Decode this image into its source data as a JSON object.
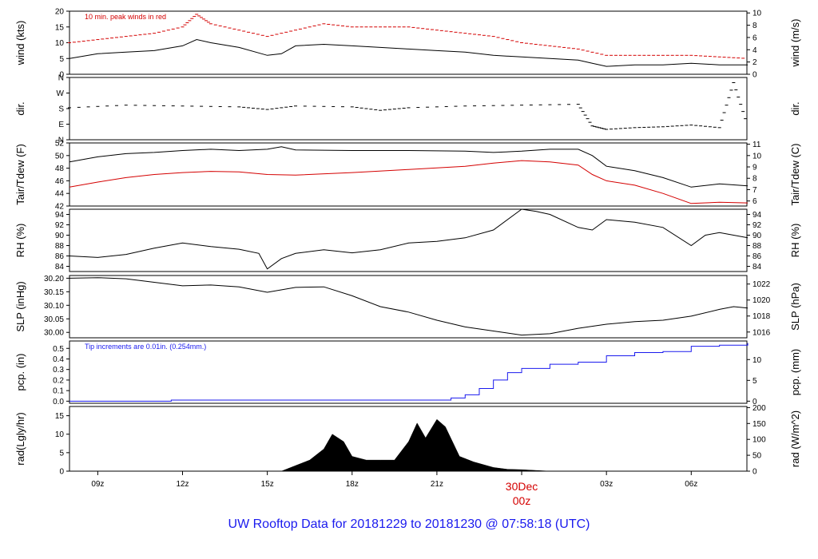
{
  "footer": {
    "title": "UW Rooftop Data for 20181229  to  20181230 @ 07:58:18  (UTC)"
  },
  "chart_data": {
    "type": "line",
    "x_axis": {
      "ticks": [
        "09z",
        "12z",
        "15z",
        "18z",
        "21z",
        "30Dec",
        "03z",
        "06z"
      ],
      "tick_hours": [
        9,
        12,
        15,
        18,
        21,
        24,
        27,
        30
      ],
      "day_label_top": "30Dec",
      "day_label_bottom": "00z",
      "xlim_hours": [
        8.0,
        31.97
      ],
      "day_color": "#d40000"
    },
    "panels": [
      {
        "id": "wind",
        "ylabel_left": "wind (kts)",
        "ylabel_right": "wind (m/s)",
        "ylim": [
          0,
          20
        ],
        "left_ticks": [
          0,
          5,
          10,
          15,
          20
        ],
        "right_ticks": [
          "0",
          "2",
          "4",
          "6",
          "8",
          "10"
        ],
        "right_tick_values": [
          0,
          3.89,
          7.78,
          11.66,
          15.55,
          19.44
        ],
        "note": "10 min. peak winds in red",
        "note_color": "#d40000",
        "series": [
          {
            "style": "line",
            "color": "#000000",
            "x": [
              8,
              9,
              10,
              11,
              12,
              12.5,
              13,
              14,
              15,
              15.5,
              16,
              17,
              18,
              19,
              20,
              21,
              22,
              23,
              24,
              25,
              26,
              26.5,
              27,
              28,
              29,
              30,
              31,
              32
            ],
            "y": [
              5,
              6.5,
              7,
              7.5,
              9,
              11,
              10,
              8.5,
              6,
              6.5,
              9,
              9.5,
              9,
              8.5,
              8,
              7.5,
              7,
              6,
              5.5,
              5,
              4.5,
              3.5,
              2.5,
              3,
              3,
              3.5,
              3,
              3
            ]
          },
          {
            "style": "dash",
            "color": "#d40000",
            "x": [
              8,
              9,
              10,
              11,
              12,
              12.5,
              13,
              14,
              15,
              16,
              17,
              18,
              19,
              20,
              21,
              22,
              23,
              24,
              25,
              26,
              27,
              28,
              29,
              30,
              31,
              32
            ],
            "y": [
              10,
              11,
              12,
              13,
              15,
              19,
              16,
              14,
              12,
              14,
              16,
              15,
              15,
              15,
              14,
              13,
              12,
              10,
              9,
              8,
              6,
              6,
              6,
              6,
              5.5,
              5
            ]
          }
        ]
      },
      {
        "id": "dir",
        "ylabel_left": "dir.",
        "ylabel_right": "dir.",
        "ylim": [
          0,
          360
        ],
        "left_ticks": [
          "N",
          "E",
          "S",
          "W",
          "N"
        ],
        "left_tick_values": [
          0,
          90,
          180,
          270,
          360
        ],
        "series": [
          {
            "style": "dash",
            "color": "#000000",
            "x": [
              8,
              10,
              12,
              14,
              15,
              16,
              18,
              19,
              20,
              22,
              24,
              26,
              26.5,
              27,
              28,
              29,
              30,
              31,
              31.5,
              32
            ],
            "y": [
              185,
              200,
              195,
              190,
              175,
              195,
              190,
              170,
              185,
              195,
              200,
              205,
              80,
              60,
              70,
              75,
              85,
              70,
              330,
              80
            ]
          }
        ]
      },
      {
        "id": "temp",
        "ylabel_left": "Tair/Tdew (F)",
        "ylabel_right": "Tair/Tdew (C)",
        "ylim": [
          42,
          52
        ],
        "left_ticks": [
          42,
          44,
          46,
          48,
          50,
          52
        ],
        "right_ticks": [
          "6",
          "7",
          "8",
          "9",
          "10",
          "11"
        ],
        "right_tick_values": [
          42.8,
          44.6,
          46.4,
          48.2,
          50.0,
          51.8
        ],
        "series": [
          {
            "style": "line",
            "color": "#000000",
            "x": [
              8,
              9,
              10,
              11,
              12,
              13,
              14,
              15,
              15.5,
              16,
              18,
              20,
              22,
              23,
              24,
              25,
              26,
              26.5,
              27,
              28,
              29,
              30,
              31,
              32
            ],
            "y": [
              49,
              49.8,
              50.3,
              50.5,
              50.8,
              51,
              50.8,
              51,
              51.4,
              50.9,
              50.8,
              50.8,
              50.7,
              50.5,
              50.7,
              51,
              51,
              50,
              48.3,
              47.6,
              46.5,
              45,
              45.5,
              45.2
            ]
          },
          {
            "style": "line",
            "color": "#d40000",
            "x": [
              8,
              9,
              10,
              11,
              12,
              13,
              14,
              15,
              16,
              18,
              20,
              22,
              23,
              24,
              25,
              26,
              26.5,
              27,
              28,
              29,
              30,
              31,
              32
            ],
            "y": [
              45,
              45.8,
              46.5,
              47,
              47.3,
              47.5,
              47.4,
              47,
              46.9,
              47.3,
              47.8,
              48.3,
              48.8,
              49.2,
              49,
              48.5,
              47,
              46,
              45.3,
              44,
              42.4,
              42.6,
              42.5
            ]
          }
        ]
      },
      {
        "id": "rh",
        "ylabel_left": "RH (%)",
        "ylabel_right": "RH (%)",
        "ylim": [
          83,
          95
        ],
        "left_ticks": [
          84,
          86,
          88,
          90,
          92,
          94
        ],
        "right_ticks": [
          "84",
          "86",
          "88",
          "90",
          "92",
          "94"
        ],
        "right_tick_values": [
          84,
          86,
          88,
          90,
          92,
          94
        ],
        "series": [
          {
            "style": "line",
            "color": "#000000",
            "x": [
              8,
              9,
              10,
              11,
              12,
              13,
              14,
              14.7,
              15,
              15.5,
              16,
              17,
              18,
              19,
              20,
              21,
              22,
              23,
              24,
              24.5,
              25,
              26,
              26.5,
              27,
              28,
              29,
              30,
              30.5,
              31,
              32
            ],
            "y": [
              86,
              85.7,
              86.3,
              87.5,
              88.5,
              87.8,
              87.3,
              86.5,
              83.5,
              85.5,
              86.5,
              87.2,
              86.6,
              87.2,
              88.5,
              88.8,
              89.5,
              91,
              95,
              94.6,
              94,
              91.5,
              91,
              93,
              92.5,
              91.5,
              88,
              90,
              90.5,
              89.5
            ]
          }
        ]
      },
      {
        "id": "slp",
        "ylabel_left": "SLP (inHg)",
        "ylabel_right": "SLP (hPa)",
        "ylim": [
          29.98,
          30.21
        ],
        "left_ticks": [
          "30.00",
          "30.05",
          "30.10",
          "30.15",
          "30.20"
        ],
        "left_tick_values": [
          30.0,
          30.05,
          30.1,
          30.15,
          30.2
        ],
        "right_ticks": [
          "1016",
          "1018",
          "1020",
          "1022"
        ],
        "right_tick_values": [
          30.0013,
          30.0604,
          30.1194,
          30.1785
        ],
        "series": [
          {
            "style": "line",
            "color": "#000000",
            "x": [
              8,
              9,
              10,
              11,
              12,
              13,
              14,
              15,
              16,
              17,
              18,
              19,
              20,
              21,
              22,
              23,
              24,
              25,
              26,
              27,
              28,
              29,
              30,
              31,
              31.5,
              32
            ],
            "y": [
              30.2,
              30.202,
              30.198,
              30.185,
              30.172,
              30.175,
              30.168,
              30.148,
              30.166,
              30.168,
              30.135,
              30.095,
              30.075,
              30.045,
              30.02,
              30.005,
              29.99,
              29.995,
              30.015,
              30.03,
              30.04,
              30.045,
              30.06,
              30.085,
              30.095,
              30.09
            ]
          }
        ]
      },
      {
        "id": "pcp",
        "ylabel_left": "pcp. (in)",
        "ylabel_right": "pcp. (mm)",
        "ylim": [
          -0.02,
          0.57
        ],
        "left_ticks": [
          "0.0",
          "0.1",
          "0.2",
          "0.3",
          "0.4",
          "0.5"
        ],
        "left_tick_values": [
          0,
          0.1,
          0.2,
          0.3,
          0.4,
          0.5
        ],
        "right_ticks": [
          "0",
          "5",
          "10"
        ],
        "right_tick_values": [
          0,
          0.197,
          0.394
        ],
        "note": "Tip increments are 0.01in. (0.254mm.)",
        "note_color": "#1a1aee",
        "series": [
          {
            "style": "step",
            "color": "#1a1aee",
            "x": [
              8,
              11.5,
              11.6,
              20.7,
              21.5,
              22,
              22.5,
              23,
              23.5,
              24,
              25,
              26,
              27,
              28,
              29,
              30,
              31,
              32
            ],
            "y": [
              0,
              0,
              0.01,
              0.01,
              0.03,
              0.06,
              0.12,
              0.2,
              0.27,
              0.31,
              0.35,
              0.37,
              0.43,
              0.46,
              0.47,
              0.52,
              0.53,
              0.55
            ]
          }
        ]
      },
      {
        "id": "rad",
        "ylabel_left": "rad(Lgly/hr)",
        "ylabel_right": "rad (W/m^2)",
        "ylim": [
          0,
          17.5
        ],
        "left_ticks": [
          0,
          5,
          10,
          15
        ],
        "right_ticks": [
          "0",
          "50",
          "100",
          "150",
          "200"
        ],
        "right_tick_values": [
          0,
          4.3,
          8.6,
          12.9,
          17.2
        ],
        "series": [
          {
            "style": "area",
            "color": "#000000",
            "x": [
              15.5,
              16,
              16.5,
              17,
              17.3,
              17.7,
              18,
              18.5,
              19,
              19.5,
              20,
              20.3,
              20.6,
              21,
              21.3,
              21.8,
              22.3,
              23,
              23.5,
              24,
              24.5,
              25
            ],
            "y": [
              0,
              1.5,
              3,
              6,
              10,
              8,
              4,
              3,
              3,
              3,
              8,
              13,
              9,
              14,
              12,
              4,
              2.5,
              1,
              0.5,
              0.4,
              0.2,
              0
            ]
          }
        ]
      }
    ]
  }
}
